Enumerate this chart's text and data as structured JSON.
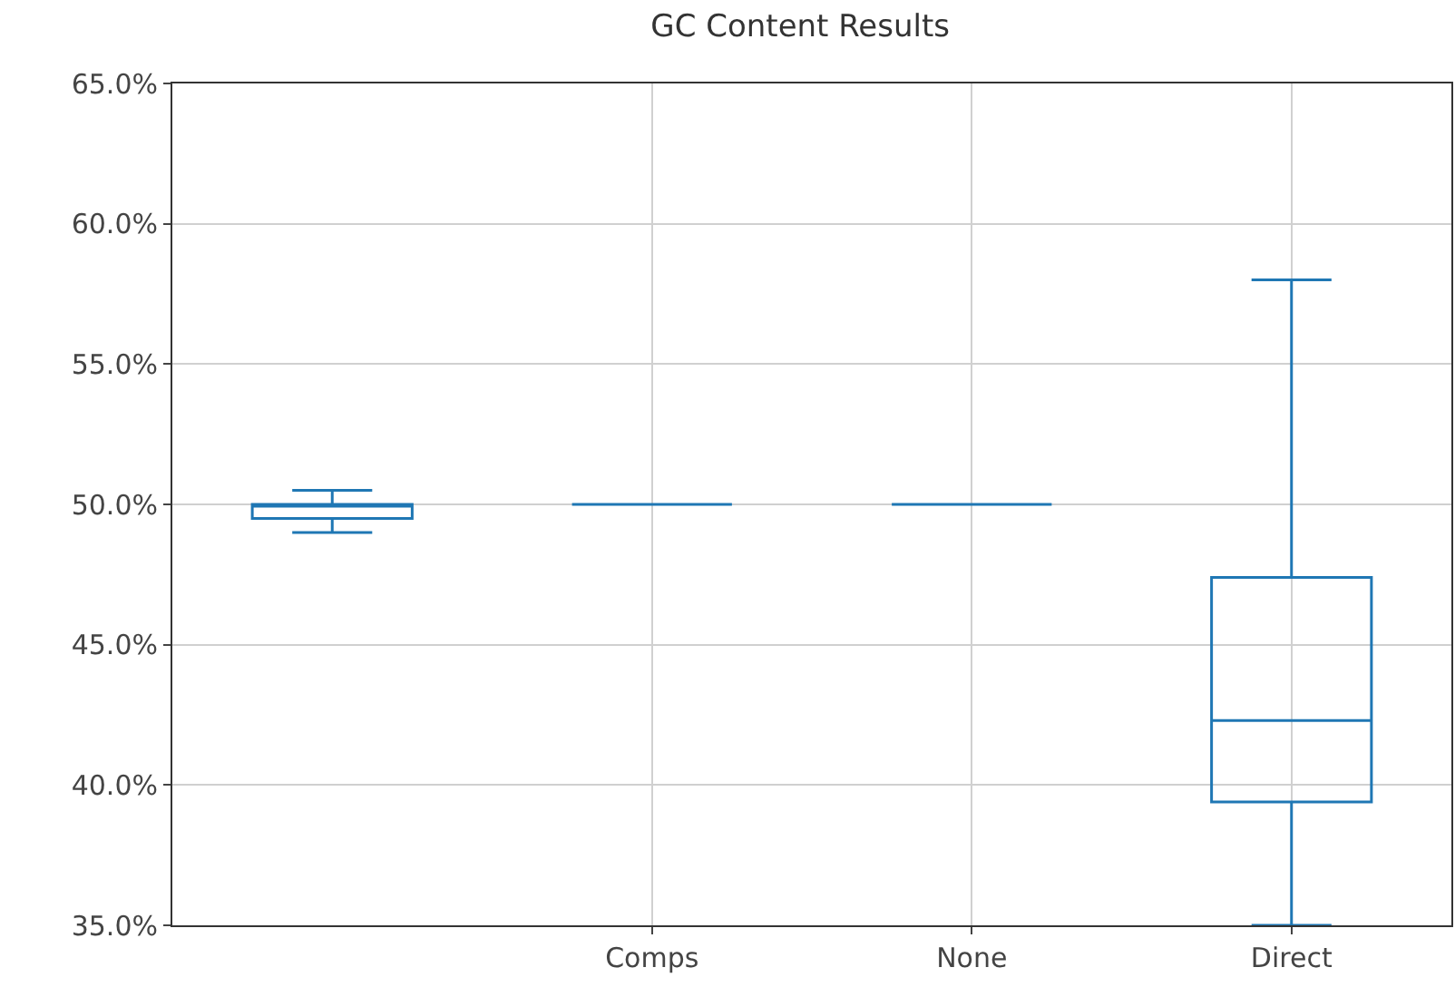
{
  "chart_data": {
    "type": "box",
    "title": "GC Content Results",
    "categories": [
      null,
      "Comps",
      "None",
      "Direct"
    ],
    "boxes": [
      {
        "low": 49.0,
        "q1": 49.5,
        "median": 50.0,
        "q3": 50.0,
        "high": 50.5
      },
      {
        "low": 50.0,
        "q1": 50.0,
        "median": 50.0,
        "q3": 50.0,
        "high": 50.0
      },
      {
        "low": 50.0,
        "q1": 50.0,
        "median": 50.0,
        "q3": 50.0,
        "high": 50.0
      },
      {
        "low": 35.0,
        "q1": 39.4,
        "median": 42.3,
        "q3": 47.4,
        "high": 58.0
      }
    ],
    "color": "#1f77b4",
    "ylim": [
      35,
      65
    ],
    "yticks": [
      {
        "value": 35,
        "label": "35.0%"
      },
      {
        "value": 40,
        "label": "40.0%"
      },
      {
        "value": 45,
        "label": "45.0%"
      },
      {
        "value": 50,
        "label": "50.0%"
      },
      {
        "value": 55,
        "label": "55.0%"
      },
      {
        "value": 60,
        "label": "60.0%"
      },
      {
        "value": 65,
        "label": "65.0%"
      }
    ],
    "grid": true,
    "legend": false
  }
}
